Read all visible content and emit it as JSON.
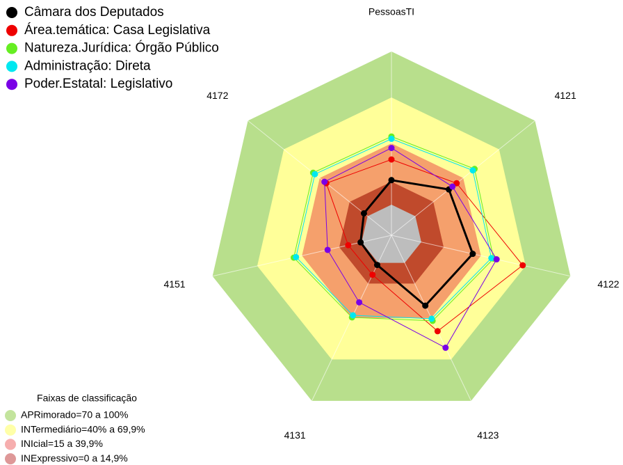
{
  "chart_data": {
    "type": "radar",
    "categories": [
      "PessoasTI",
      "4121",
      "4122",
      "4123",
      "4131",
      "4151",
      "4172"
    ],
    "ylim": [
      -20,
      100
    ],
    "series": [
      {
        "name": "Câmara dos Deputados",
        "color": "#000000",
        "values": [
          16,
          28,
          34.5,
          31,
          1.5,
          0.7,
          3
        ]
      },
      {
        "name": "Área.temática: Casa Legislativa",
        "color": "#ee0000",
        "values": [
          29.5,
          34.5,
          68,
          49.5,
          8.6,
          9,
          34.5
        ]
      },
      {
        "name": "Natureza.Jurídica: Órgão Público",
        "color": "#66ee22",
        "values": [
          44.5,
          49.5,
          48.5,
          42,
          39.5,
          45.5,
          45.5
        ]
      },
      {
        "name": "Administração: Direta",
        "color": "#00e8f0",
        "values": [
          43,
          48,
          47,
          40.5,
          38,
          44,
          44
        ]
      },
      {
        "name": "Poder.Estatal: Legislativo",
        "color": "#7a00e6",
        "values": [
          37,
          31,
          50.5,
          61.5,
          28.6,
          22.8,
          36
        ]
      }
    ],
    "bands_title": "Faixas de classificação",
    "bands": [
      {
        "label": "APRimorado=70 a 100%",
        "range": [
          70,
          100
        ],
        "color": "#b8df8c",
        "legend_color": "#b8df8c"
      },
      {
        "label": "INTermediário=40% a 69,9%",
        "range": [
          40,
          70
        ],
        "color": "#ffff99",
        "legend_color": "#ffff99"
      },
      {
        "label": "INIcial=15 a 39,9%",
        "range": [
          15,
          40
        ],
        "color": "#f5a06c",
        "legend_color": "#f5a0a0"
      },
      {
        "label": "INExpressivo=0 a 14,9%",
        "range": [
          0,
          15
        ],
        "color": "#c04a2c",
        "legend_color": "#d88686"
      }
    ]
  }
}
